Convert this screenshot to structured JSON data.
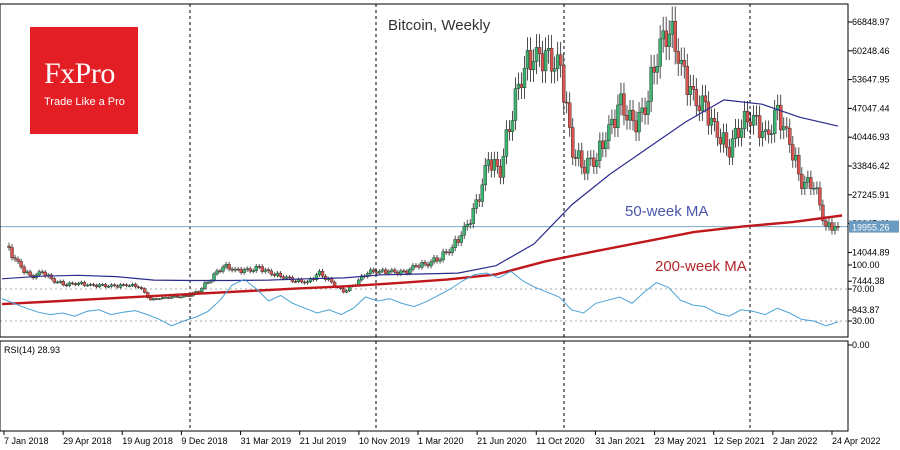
{
  "logo": {
    "brand": "FxPro",
    "tagline": "Trade Like a Pro"
  },
  "chart_data": [
    {
      "type": "candlestick",
      "title": "Bitcoin, Weekly",
      "price_axis_ticks": [
        66848.97,
        60248.46,
        53647.95,
        47047.44,
        40446.93,
        33846.42,
        27245.91,
        20645.4,
        14044.89,
        7444.38,
        843.87
      ],
      "current_price_label": "19955.26",
      "current_price": 19955.26,
      "x_labels": [
        "7 Jan 2018",
        "29 Apr 2018",
        "19 Aug 2018",
        "9 Dec 2018",
        "31 Mar 2019",
        "21 Jul 2019",
        "10 Nov 2019",
        "1 Mar 2020",
        "21 Jun 2020",
        "11 Oct 2020",
        "31 Jan 2021",
        "23 May 2021",
        "12 Sep 2021",
        "2 Jan 2022",
        "24 Apr 2022"
      ],
      "closes": [
        15500,
        11500,
        8300,
        9500,
        7500,
        6700,
        7000,
        6500,
        6400,
        6300,
        6600,
        6300,
        3200,
        3600,
        3800,
        4000,
        5300,
        8100,
        11000,
        10000,
        9800,
        10500,
        9200,
        8500,
        7600,
        7200,
        9300,
        7000,
        5000,
        7000,
        9600,
        9700,
        9600,
        9300,
        11000,
        11500,
        13000,
        15200,
        19000,
        24500,
        35000,
        33000,
        47000,
        57000,
        59000,
        58000,
        56000,
        37000,
        34000,
        36000,
        42000,
        48000,
        43000,
        47000,
        60000,
        66000,
        57000,
        49000,
        47000,
        41000,
        38000,
        44000,
        45000,
        40000,
        46000,
        39000,
        30000,
        30000,
        20000,
        19955
      ],
      "series": [
        {
          "name": "50-week MA",
          "values": [
            8000,
            8600,
            8800,
            8500,
            7700,
            7600,
            7600,
            7700,
            8000,
            8200,
            8900,
            9100,
            9300,
            11000,
            16000,
            25000,
            32000,
            38000,
            44000,
            49000,
            48000,
            45000,
            43000
          ]
        },
        {
          "name": "200-week MA",
          "values": [
            2200,
            2800,
            3400,
            4000,
            4600,
            5200,
            5800,
            6300,
            7000,
            7800,
            9000,
            12000,
            14300,
            16500,
            18700,
            20000,
            21000,
            22500
          ]
        }
      ],
      "ylim": [
        -3000,
        69000
      ]
    },
    {
      "type": "line",
      "title": "RSI(14) 28.93",
      "yticks": [
        "100.00",
        "70.00",
        "30.00",
        "0.00"
      ],
      "levels": [
        70,
        30
      ],
      "ylim": [
        0,
        100
      ],
      "series": [
        {
          "name": "RSI(14)",
          "values": [
            58,
            52,
            46,
            41,
            38,
            40,
            36,
            42,
            44,
            38,
            41,
            43,
            38,
            32,
            24,
            30,
            35,
            42,
            56,
            75,
            82,
            70,
            55,
            62,
            52,
            46,
            40,
            44,
            38,
            46,
            60,
            55,
            58,
            52,
            48,
            54,
            62,
            70,
            80,
            88,
            90,
            84,
            92,
            80,
            72,
            66,
            60,
            44,
            40,
            52,
            56,
            60,
            52,
            66,
            78,
            72,
            56,
            50,
            48,
            40,
            36,
            44,
            42,
            38,
            46,
            40,
            32,
            30,
            24,
            28.93
          ]
        }
      ]
    }
  ]
}
